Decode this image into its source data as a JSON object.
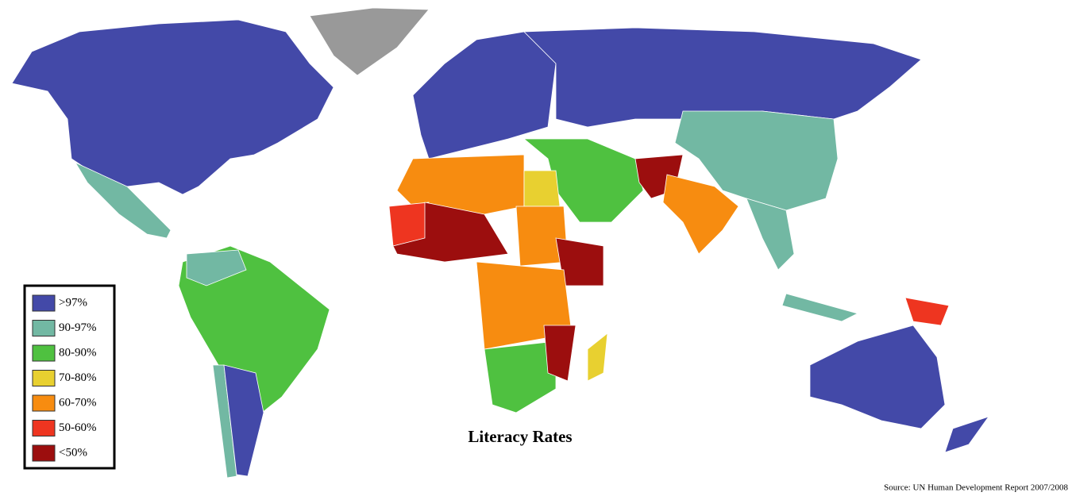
{
  "title": "Literacy Rates",
  "legend": [
    {
      "label": ">97%",
      "color": "#4349a8"
    },
    {
      "label": "90-97%",
      "color": "#72b8a3"
    },
    {
      "label": "80-90%",
      "color": "#4fc140"
    },
    {
      "label": "70-80%",
      "color": "#e8d030"
    },
    {
      "label": "60-70%",
      "color": "#f78c10"
    },
    {
      "label": "50-60%",
      "color": "#ee3520"
    },
    {
      "label": "<50%",
      "color": "#9c0e0e"
    }
  ],
  "source": "Source: UN Human Development Report 2007/2008"
}
